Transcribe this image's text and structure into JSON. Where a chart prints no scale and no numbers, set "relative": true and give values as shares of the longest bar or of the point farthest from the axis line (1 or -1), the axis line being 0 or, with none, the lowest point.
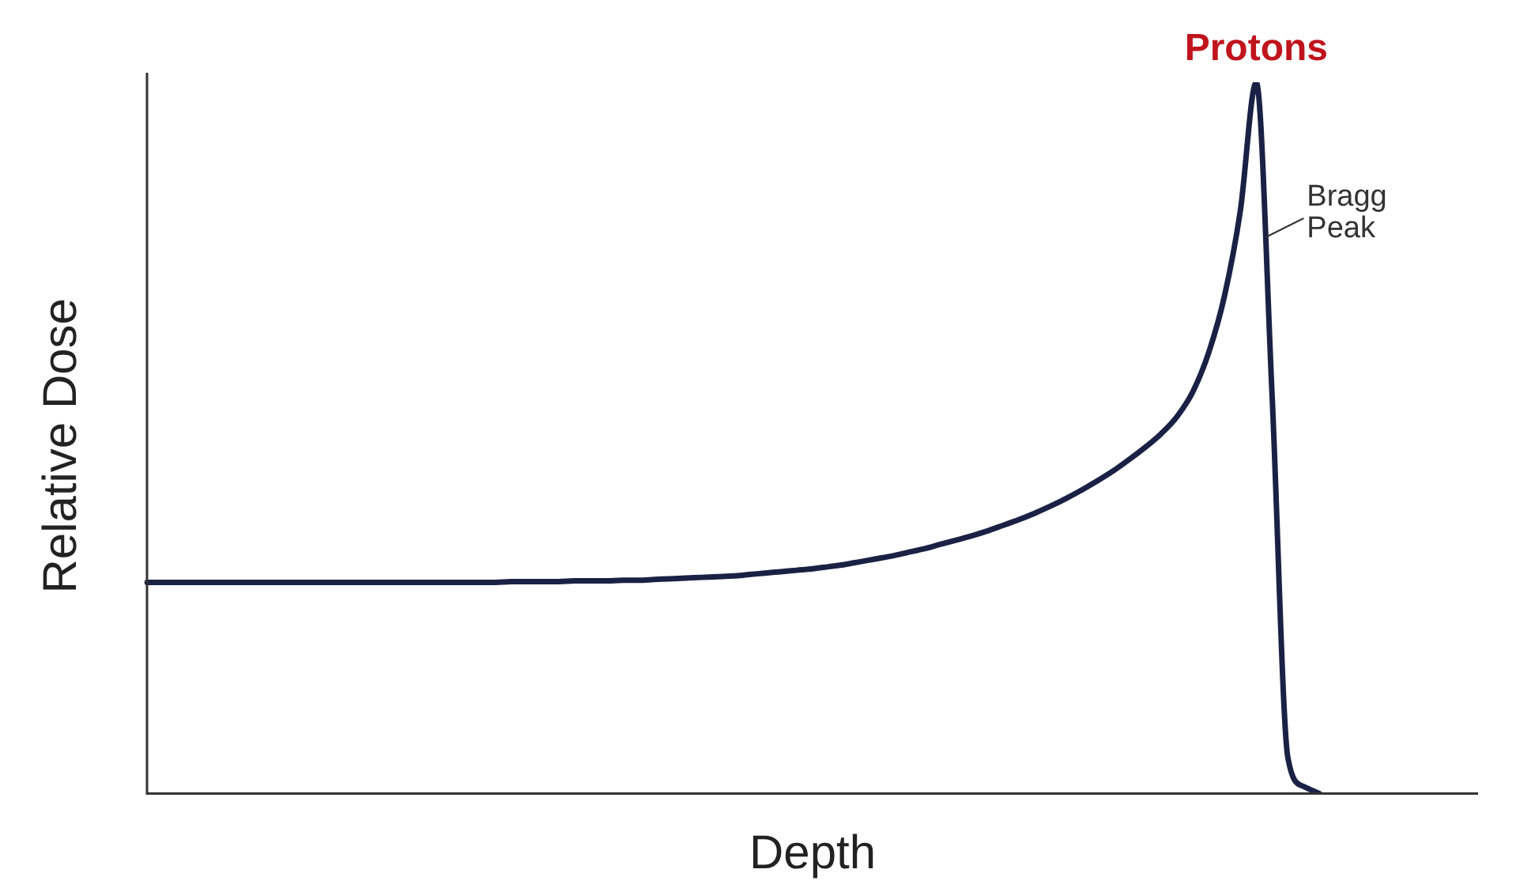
{
  "chart_data": {
    "type": "line",
    "relative": true,
    "xlabel": "Depth",
    "ylabel": "Relative Dose",
    "annotations": [
      "Protons",
      "Bragg\nPeak"
    ],
    "grid": false,
    "marker": "none",
    "line_style": "solid",
    "categories": [
      null,
      null,
      null,
      null,
      null,
      null,
      null,
      null,
      null,
      null,
      null,
      null,
      null,
      null,
      null,
      null,
      null,
      null,
      null,
      null,
      null,
      null,
      null,
      null,
      null,
      null,
      null,
      null,
      null,
      null,
      null,
      null,
      null,
      null,
      null,
      null,
      null,
      null,
      null,
      null,
      null,
      null,
      null,
      null,
      null,
      null,
      null,
      null,
      null,
      null,
      null,
      null,
      null,
      null,
      null,
      null,
      null,
      null,
      null,
      null,
      null,
      null,
      null,
      null,
      null,
      null,
      null,
      null,
      null,
      null,
      null,
      null,
      null,
      null,
      null,
      null,
      null,
      null,
      null,
      null,
      null,
      null,
      null,
      null,
      null
    ],
    "series": [
      {
        "color": "#1a2145",
        "values": [
          0.297,
          0.297,
          0.297,
          0.297,
          0.297,
          0.297,
          0.297,
          0.297,
          0.297,
          0.297,
          0.297,
          0.297,
          0.297,
          0.297,
          0.297,
          0.297,
          0.297,
          0.297,
          0.297,
          0.297,
          0.297,
          0.297,
          0.297,
          0.298,
          0.298,
          0.298,
          0.298,
          0.299,
          0.299,
          0.299,
          0.3,
          0.3,
          0.301,
          0.302,
          0.303,
          0.304,
          0.305,
          0.306,
          0.308,
          0.31,
          0.312,
          0.314,
          0.316,
          0.319,
          0.322,
          0.326,
          0.33,
          0.334,
          0.339,
          0.344,
          0.35,
          0.356,
          0.362,
          0.369,
          0.377,
          0.385,
          0.394,
          0.404,
          0.415,
          0.427,
          0.44,
          0.454,
          0.47,
          0.487,
          0.506,
          0.53,
          0.565,
          0.62,
          0.7,
          0.82,
          1,
          0.56,
          0.05,
          0.01,
          0,
          null,
          null,
          null,
          null,
          null,
          null,
          null,
          null,
          null,
          null
        ]
      }
    ]
  }
}
